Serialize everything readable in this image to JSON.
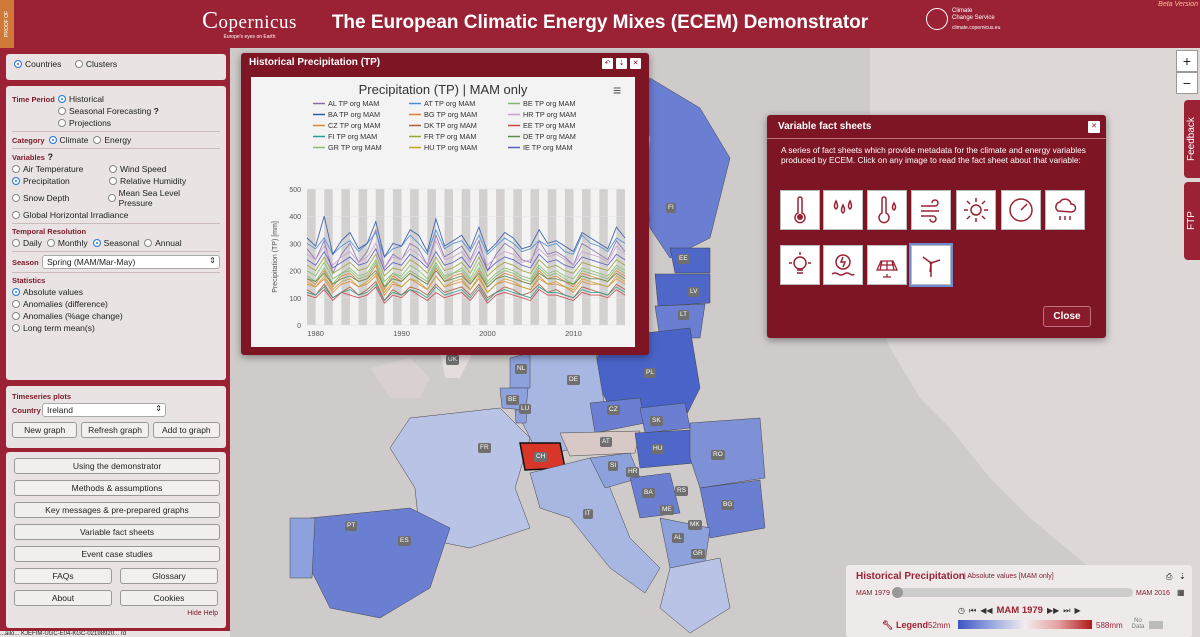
{
  "header": {
    "title": "The European Climatic Energy Mixes (ECEM) Demonstrator",
    "logo_name": "opernicus",
    "logo_sub": "Europe's eyes on Earth",
    "c3s_line1": "Climate",
    "c3s_line2": "Change Service",
    "c3s_url": "climate.copernicus.eu",
    "beta": "Beta Version",
    "side_tab": "PROOF OF CONCEPT"
  },
  "left_panel": {
    "countries": "Countries",
    "clusters": "Clusters",
    "time_period_label": "Time Period",
    "historical": "Historical",
    "seasonal_forecasting": "Seasonal Forecasting",
    "help_mark": "?",
    "projections": "Projections",
    "category_label": "Category",
    "climate": "Climate",
    "energy": "Energy",
    "variables_label": "Variables",
    "variables_help": "?",
    "air_temperature": "Air Temperature",
    "wind_speed": "Wind Speed",
    "precipitation": "Precipitation",
    "relative_humidity": "Relative Humidity",
    "snow_depth": "Snow Depth",
    "mean_sea_level_pressure": "Mean Sea Level Pressure",
    "ghi": "Global Horizontal Irradiance",
    "temporal_label": "Temporal Resolution",
    "daily": "Daily",
    "monthly": "Monthly",
    "seasonal": "Seasonal",
    "annual": "Annual",
    "season_label": "Season",
    "season_value": "Spring (MAM/Mar-May)",
    "statistics_label": "Statistics",
    "absolute_values": "Absolute values",
    "anomalies_difference": "Anomalies (difference)",
    "anomalies_percent": "Anomalies (%age change)",
    "long_term_mean": "Long term mean(s)",
    "timeseries_label": "Timeseries plots",
    "country_label": "Country",
    "country_value": "Ireland",
    "new_graph": "New graph",
    "refresh_graph": "Refresh graph",
    "add_to_graph": "Add to graph",
    "using_demonstrator": "Using the demonstrator",
    "methods": "Methods & assumptions",
    "key_messages": "Key messages & pre-prepared graphs",
    "variable_fact_sheets": "Variable fact sheets",
    "event_case_studies": "Event case studies",
    "faqs": "FAQs",
    "glossary": "Glossary",
    "about": "About",
    "cookies": "Cookies",
    "hide_help": "Hide Help",
    "status_text": "...ailo... KJEFIM-UGC-E04-KGC-02198920... rd"
  },
  "chart_window": {
    "window_title": "Historical Precipitation (TP)",
    "chart_title": "Precipitation (TP) | MAM only",
    "menu_icon": "≡"
  },
  "chart_data": {
    "type": "line",
    "title": "Precipitation (TP) | MAM only",
    "xlabel": "",
    "ylabel": "Precipitation (TP) [mm]",
    "xlim": [
      1979,
      2016
    ],
    "ylim": [
      0,
      500
    ],
    "yticks": [
      0,
      100,
      200,
      300,
      400,
      500
    ],
    "xticks": [
      1980,
      1990,
      2000,
      2010
    ],
    "series_names": [
      "AL TP org MAM",
      "AT TP org MAM",
      "BE TP org MAM",
      "BA TP org MAM",
      "BG TP org MAM",
      "HR TP org MAM",
      "CZ TP org MAM",
      "DK TP org MAM",
      "EE TP org MAM",
      "FI TP org MAM",
      "FR TP org MAM",
      "DE TP org MAM",
      "GR TP org MAM",
      "HU TP org MAM",
      "IE TP org MAM"
    ],
    "series_colors": [
      "#8a6fae",
      "#4a8fd4",
      "#7fb96a",
      "#3455a5",
      "#e07b39",
      "#c9a0d0",
      "#d9893a",
      "#b05a3a",
      "#d1434b",
      "#2e9a8a",
      "#9aa33b",
      "#5a8a4a",
      "#85c06a",
      "#c7a030",
      "#5c5cc0"
    ],
    "note_values": "values are estimated readings; each series has 38 yearly MAM values (1979-2016)",
    "series": [
      {
        "name": "AL TP org MAM",
        "values": [
          280,
          240,
          310,
          190,
          260,
          300,
          230,
          270,
          350,
          210,
          260,
          240,
          300,
          280,
          220,
          330,
          250,
          270,
          290,
          240,
          310,
          200,
          260,
          300,
          280,
          240,
          230,
          310,
          260,
          270,
          250,
          220,
          300,
          280,
          260,
          240,
          310,
          270
        ]
      },
      {
        "name": "AT TP org MAM",
        "values": [
          300,
          280,
          320,
          260,
          290,
          310,
          270,
          300,
          340,
          250,
          280,
          290,
          330,
          300,
          260,
          350,
          280,
          300,
          310,
          270,
          330,
          260,
          290,
          320,
          300,
          270,
          280,
          310,
          290,
          300,
          270,
          260,
          330,
          300,
          290,
          270,
          320,
          300
        ]
      },
      {
        "name": "BE TP org MAM",
        "values": [
          180,
          160,
          210,
          150,
          190,
          200,
          170,
          180,
          230,
          140,
          190,
          170,
          200,
          180,
          160,
          220,
          170,
          190,
          200,
          160,
          210,
          150,
          180,
          200,
          190,
          170,
          160,
          210,
          180,
          190,
          170,
          150,
          200,
          190,
          180,
          170,
          210,
          190
        ]
      },
      {
        "name": "BA TP org MAM",
        "values": [
          320,
          290,
          400,
          260,
          310,
          340,
          280,
          300,
          380,
          250,
          300,
          290,
          350,
          330,
          270,
          390,
          290,
          310,
          330,
          280,
          360,
          270,
          300,
          340,
          320,
          280,
          290,
          350,
          300,
          310,
          290,
          270,
          340,
          320,
          300,
          280,
          360,
          320
        ]
      },
      {
        "name": "BG TP org MAM",
        "values": [
          170,
          150,
          200,
          140,
          180,
          190,
          160,
          170,
          220,
          130,
          180,
          160,
          190,
          170,
          150,
          210,
          160,
          180,
          190,
          150,
          200,
          140,
          170,
          190,
          180,
          160,
          150,
          200,
          170,
          180,
          160,
          140,
          190,
          180,
          170,
          160,
          200,
          180
        ]
      },
      {
        "name": "HR TP org MAM",
        "values": [
          260,
          240,
          290,
          220,
          250,
          270,
          230,
          250,
          300,
          210,
          250,
          240,
          280,
          260,
          220,
          310,
          240,
          250,
          270,
          230,
          290,
          220,
          250,
          270,
          260,
          230,
          240,
          280,
          250,
          260,
          240,
          220,
          270,
          260,
          250,
          230,
          290,
          260
        ]
      },
      {
        "name": "CZ TP org MAM",
        "values": [
          150,
          140,
          170,
          120,
          150,
          160,
          140,
          150,
          180,
          110,
          150,
          140,
          170,
          150,
          130,
          180,
          140,
          150,
          160,
          130,
          170,
          120,
          150,
          160,
          150,
          140,
          130,
          170,
          150,
          150,
          140,
          120,
          160,
          150,
          150,
          140,
          170,
          150
        ]
      },
      {
        "name": "DK TP org MAM",
        "values": [
          130,
          110,
          150,
          100,
          120,
          140,
          110,
          130,
          160,
          90,
          130,
          110,
          140,
          130,
          110,
          150,
          120,
          130,
          140,
          110,
          150,
          100,
          120,
          140,
          130,
          110,
          120,
          150,
          120,
          130,
          110,
          100,
          140,
          130,
          120,
          110,
          150,
          130
        ]
      },
      {
        "name": "EE TP org MAM",
        "values": [
          110,
          100,
          130,
          90,
          120,
          110,
          100,
          110,
          140,
          80,
          110,
          100,
          130,
          110,
          90,
          120,
          100,
          110,
          120,
          90,
          130,
          80,
          110,
          120,
          110,
          100,
          90,
          130,
          110,
          110,
          100,
          90,
          120,
          110,
          110,
          100,
          130,
          110
        ]
      },
      {
        "name": "FI TP org MAM",
        "values": [
          120,
          110,
          140,
          100,
          120,
          130,
          110,
          120,
          150,
          90,
          120,
          110,
          130,
          120,
          100,
          140,
          110,
          120,
          130,
          100,
          140,
          90,
          120,
          130,
          120,
          110,
          100,
          140,
          120,
          120,
          110,
          100,
          130,
          120,
          120,
          110,
          140,
          120
        ]
      },
      {
        "name": "FR TP org MAM",
        "values": [
          220,
          200,
          250,
          190,
          210,
          230,
          200,
          210,
          260,
          180,
          210,
          200,
          240,
          220,
          190,
          250,
          200,
          210,
          230,
          190,
          250,
          180,
          210,
          230,
          220,
          200,
          190,
          240,
          210,
          220,
          200,
          190,
          230,
          220,
          210,
          200,
          240,
          220
        ]
      },
      {
        "name": "DE TP org MAM",
        "values": [
          170,
          160,
          190,
          150,
          170,
          180,
          160,
          170,
          200,
          140,
          170,
          160,
          190,
          170,
          150,
          200,
          160,
          170,
          180,
          150,
          190,
          140,
          170,
          180,
          170,
          160,
          150,
          190,
          170,
          170,
          160,
          150,
          180,
          170,
          170,
          160,
          190,
          170
        ]
      },
      {
        "name": "GR TP org MAM",
        "values": [
          200,
          180,
          230,
          170,
          190,
          210,
          180,
          190,
          240,
          160,
          190,
          180,
          220,
          200,
          170,
          230,
          180,
          190,
          210,
          170,
          230,
          160,
          190,
          210,
          200,
          180,
          170,
          220,
          190,
          200,
          180,
          170,
          210,
          200,
          190,
          180,
          220,
          200
        ]
      },
      {
        "name": "HU TP org MAM",
        "values": [
          160,
          140,
          180,
          130,
          160,
          170,
          140,
          160,
          190,
          120,
          160,
          140,
          170,
          160,
          130,
          180,
          140,
          160,
          170,
          130,
          180,
          120,
          150,
          170,
          160,
          140,
          130,
          180,
          150,
          160,
          140,
          130,
          170,
          160,
          150,
          140,
          180,
          160
        ]
      },
      {
        "name": "IE TP org MAM",
        "values": [
          240,
          220,
          270,
          210,
          230,
          250,
          220,
          230,
          280,
          200,
          230,
          220,
          260,
          240,
          210,
          270,
          220,
          230,
          250,
          210,
          270,
          200,
          230,
          250,
          240,
          220,
          210,
          260,
          230,
          240,
          220,
          210,
          250,
          240,
          230,
          220,
          260,
          240
        ]
      }
    ]
  },
  "fact_sheets": {
    "title": "Variable fact sheets",
    "description": "A series of fact sheets which provide metadata for the climate and energy variables produced by ECEM. Click on any image to read the fact sheet about that variable:",
    "close": "Close",
    "close_x": "✕"
  },
  "map": {
    "zoom_in": "+",
    "zoom_out": "−",
    "feedback": "Feedback",
    "ftp": "FTP",
    "labels": [
      "FI",
      "EE",
      "LV",
      "LT",
      "PL",
      "UK",
      "NL",
      "DE",
      "BE",
      "LU",
      "CZ",
      "SK",
      "AT",
      "HU",
      "RO",
      "FR",
      "CH",
      "SI",
      "HR",
      "RS",
      "BA",
      "ME",
      "BG",
      "IT",
      "MK",
      "AL",
      "GR",
      "PT",
      "ES"
    ]
  },
  "timebar": {
    "title": "Historical Precipitation",
    "subtitle": "| Absolute values [MAM only]",
    "start_label": "MAM 1979",
    "end_label": "MAM 2016",
    "current": "MAM 1979",
    "legend_label": "Legend",
    "legend_min": "52mm",
    "legend_max": "588mm",
    "no_data": "No Data",
    "slider_fraction": 0.0
  }
}
